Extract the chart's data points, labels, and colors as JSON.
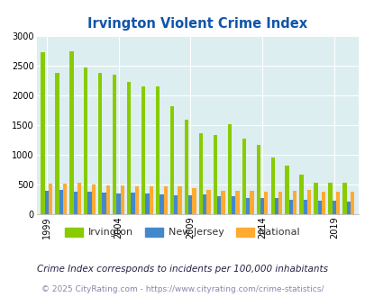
{
  "title": "Irvington Violent Crime Index",
  "years": [
    1999,
    2000,
    2001,
    2002,
    2003,
    2004,
    2005,
    2006,
    2007,
    2008,
    2009,
    2010,
    2011,
    2012,
    2013,
    2014,
    2015,
    2016,
    2017,
    2018,
    2019,
    2020
  ],
  "irvington": [
    2720,
    2380,
    2730,
    2470,
    2380,
    2340,
    2220,
    2140,
    2140,
    1810,
    1590,
    1360,
    1320,
    1510,
    1260,
    1160,
    950,
    810,
    660,
    530,
    530,
    530
  ],
  "new_jersey": [
    390,
    400,
    370,
    370,
    360,
    340,
    360,
    340,
    320,
    310,
    310,
    320,
    290,
    290,
    270,
    260,
    260,
    240,
    230,
    220,
    220,
    210
  ],
  "national": [
    510,
    510,
    520,
    500,
    480,
    480,
    470,
    470,
    460,
    460,
    430,
    400,
    390,
    390,
    390,
    370,
    370,
    390,
    400,
    380,
    380,
    370
  ],
  "irvington_color": "#88cc00",
  "nj_color": "#4488cc",
  "national_color": "#ffaa33",
  "bg_color": "#ddeef0",
  "ylim": [
    0,
    3000
  ],
  "yticks": [
    0,
    500,
    1000,
    1500,
    2000,
    2500,
    3000
  ],
  "xlabel_ticks": [
    1999,
    2004,
    2009,
    2014,
    2019
  ],
  "footer1": "Crime Index corresponds to incidents per 100,000 inhabitants",
  "footer2": "© 2025 CityRating.com - https://www.cityrating.com/crime-statistics/",
  "title_color": "#1155aa",
  "footer1_color": "#222244",
  "footer2_color": "#8888aa",
  "legend_labels": [
    "Irvington",
    "New Jersey",
    "National"
  ]
}
